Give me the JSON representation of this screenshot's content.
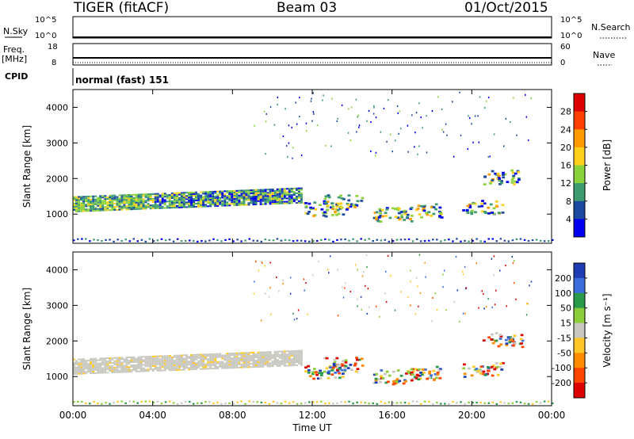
{
  "header": {
    "radar": "TIGER (fitACF)",
    "beam": "Beam 03",
    "date": "01/Oct/2015"
  },
  "strips": {
    "nsky_label": "N.Sky",
    "nsky_ticks": [
      "10^5",
      "10^0"
    ],
    "nsearch_label": "N.Search",
    "nsearch_ticks": [
      "10^5",
      "10^0"
    ],
    "freq_label_1": "Freq.",
    "freq_label_2": "[MHz]",
    "freq_ticks": [
      "18",
      "8"
    ],
    "nave_label": "Nave",
    "nave_ticks": [
      "60",
      "0"
    ],
    "cpid_label": "CPID",
    "cpid_text": "normal (fast) 151"
  },
  "chart_data": [
    {
      "type": "heatmap",
      "name": "power",
      "ylabel": "Slant Range [km]",
      "xlabel": "",
      "yticks": [
        "4000",
        "3000",
        "2000",
        "1000"
      ],
      "ytick_values": [
        4000,
        3000,
        2000,
        1000
      ],
      "ylim": [
        180,
        4500
      ],
      "xlim": [
        0,
        24
      ],
      "colorbar_label": "Power [dB]",
      "colorbar_ticks": [
        "28",
        "24",
        "20",
        "16",
        "12",
        "8",
        "4"
      ],
      "colorbar_colors": [
        "#dc0000",
        "#ff4000",
        "#ff9a00",
        "#ffd01c",
        "#8cd23c",
        "#3c9c70",
        "#1c4aa0",
        "#0000f0"
      ]
    },
    {
      "type": "heatmap",
      "name": "velocity",
      "ylabel": "Slant Range [km]",
      "xlabel": "Time UT",
      "yticks": [
        "4000",
        "3000",
        "2000",
        "1000"
      ],
      "ytick_values": [
        4000,
        3000,
        2000,
        1000
      ],
      "ylim": [
        180,
        4500
      ],
      "xlim": [
        0,
        24
      ],
      "xticks": [
        "00:00",
        "04:00",
        "08:00",
        "12:00",
        "16:00",
        "20:00",
        "00:00"
      ],
      "xtick_values": [
        0,
        4,
        8,
        12,
        16,
        20,
        24
      ],
      "colorbar_label": "Velocity [m s⁻¹]",
      "colorbar_ticks": [
        "200",
        "100",
        "50",
        "15",
        "-15",
        "-50",
        "-100",
        "-200"
      ],
      "colorbar_colors": [
        "#1e3cb4",
        "#3c6edc",
        "#2a9a4a",
        "#8ccd3c",
        "#c8c8c0",
        "#ffc828",
        "#ff8c00",
        "#ff4600",
        "#dc0000"
      ]
    }
  ]
}
